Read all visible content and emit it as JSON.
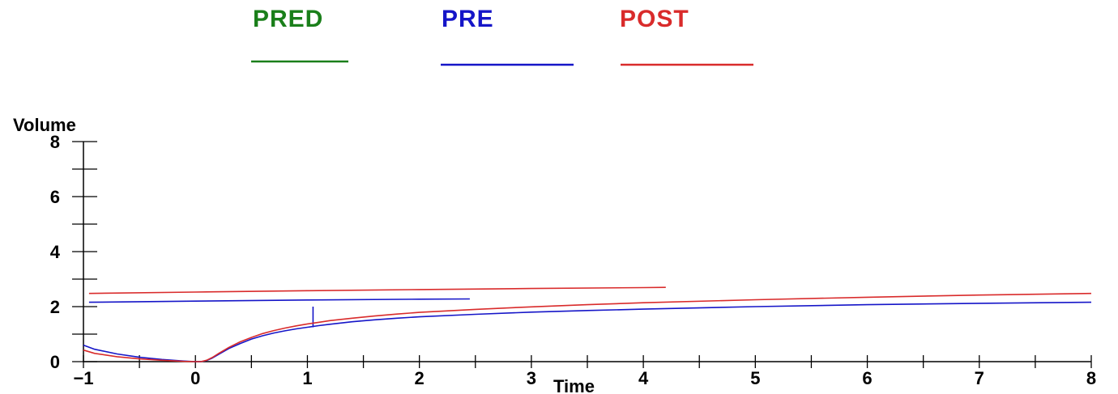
{
  "colors": {
    "pred": "#1a7f1a",
    "pre": "#1515c8",
    "post": "#d92b2b",
    "axis": "#000000",
    "background": "#ffffff"
  },
  "chart_data": {
    "type": "line",
    "xlabel": "Time",
    "ylabel": "Volume",
    "xlim": [
      -1,
      8
    ],
    "ylim": [
      0,
      8
    ],
    "x_ticks": [
      -1,
      0,
      1,
      2,
      3,
      4,
      5,
      6,
      7,
      8
    ],
    "x_tick_labels": [
      "−1",
      "0",
      "1",
      "2",
      "3",
      "4",
      "5",
      "6",
      "7",
      "8"
    ],
    "y_ticks": [
      0,
      2,
      4,
      6,
      8
    ],
    "y_tick_labels": [
      "0",
      "2",
      "4",
      "6",
      "8"
    ],
    "grid": false,
    "legend_position": "top",
    "legend": [
      {
        "key": "pred",
        "label": "PRED"
      },
      {
        "key": "pre",
        "label": "PRE"
      },
      {
        "key": "post",
        "label": "POST"
      }
    ],
    "series": [
      {
        "name": "PRE",
        "key": "pre",
        "curves": [
          {
            "points": [
              [
                -1,
                0.6
              ],
              [
                -0.9,
                0.45
              ],
              [
                -0.7,
                0.28
              ],
              [
                -0.5,
                0.16
              ],
              [
                -0.3,
                0.08
              ],
              [
                -0.1,
                0.02
              ],
              [
                0,
                0.0
              ],
              [
                0.05,
                0.0
              ],
              [
                0.1,
                0.04
              ],
              [
                0.15,
                0.13
              ],
              [
                0.2,
                0.25
              ],
              [
                0.3,
                0.48
              ],
              [
                0.4,
                0.66
              ],
              [
                0.5,
                0.82
              ],
              [
                0.6,
                0.94
              ],
              [
                0.7,
                1.04
              ],
              [
                0.8,
                1.12
              ],
              [
                0.9,
                1.19
              ],
              [
                1.0,
                1.25
              ],
              [
                1.1,
                1.31
              ],
              [
                1.2,
                1.36
              ],
              [
                1.4,
                1.45
              ],
              [
                1.6,
                1.52
              ],
              [
                1.8,
                1.58
              ],
              [
                2.0,
                1.63
              ],
              [
                2.5,
                1.72
              ],
              [
                3.0,
                1.8
              ],
              [
                3.5,
                1.86
              ],
              [
                4.0,
                1.91
              ],
              [
                5.0,
                2.0
              ],
              [
                6.0,
                2.07
              ],
              [
                7.0,
                2.12
              ],
              [
                8.0,
                2.16
              ]
            ]
          },
          {
            "points": [
              [
                -0.95,
                2.16
              ],
              [
                0.0,
                2.2
              ],
              [
                1.0,
                2.24
              ],
              [
                2.0,
                2.27
              ],
              [
                2.45,
                2.28
              ]
            ]
          },
          {
            "points": [
              [
                1.05,
                1.25
              ],
              [
                1.05,
                2.0
              ]
            ]
          }
        ]
      },
      {
        "name": "POST",
        "key": "post",
        "curves": [
          {
            "points": [
              [
                -1,
                0.42
              ],
              [
                -0.9,
                0.3
              ],
              [
                -0.7,
                0.18
              ],
              [
                -0.5,
                0.1
              ],
              [
                -0.3,
                0.05
              ],
              [
                -0.1,
                0.01
              ],
              [
                0,
                0.0
              ],
              [
                0.05,
                0.0
              ],
              [
                0.1,
                0.05
              ],
              [
                0.15,
                0.15
              ],
              [
                0.2,
                0.28
              ],
              [
                0.3,
                0.52
              ],
              [
                0.4,
                0.72
              ],
              [
                0.5,
                0.88
              ],
              [
                0.6,
                1.02
              ],
              [
                0.7,
                1.13
              ],
              [
                0.8,
                1.22
              ],
              [
                0.9,
                1.3
              ],
              [
                1.0,
                1.37
              ],
              [
                1.1,
                1.43
              ],
              [
                1.2,
                1.49
              ],
              [
                1.4,
                1.58
              ],
              [
                1.6,
                1.66
              ],
              [
                1.8,
                1.73
              ],
              [
                2.0,
                1.79
              ],
              [
                2.5,
                1.9
              ],
              [
                3.0,
                1.99
              ],
              [
                3.5,
                2.07
              ],
              [
                4.0,
                2.14
              ],
              [
                5.0,
                2.25
              ],
              [
                6.0,
                2.34
              ],
              [
                7.0,
                2.42
              ],
              [
                8.0,
                2.48
              ]
            ]
          },
          {
            "points": [
              [
                -0.95,
                2.48
              ],
              [
                0.0,
                2.53
              ],
              [
                1.0,
                2.58
              ],
              [
                2.0,
                2.62
              ],
              [
                3.0,
                2.66
              ],
              [
                4.0,
                2.69
              ],
              [
                4.2,
                2.7
              ]
            ]
          }
        ]
      }
    ]
  }
}
